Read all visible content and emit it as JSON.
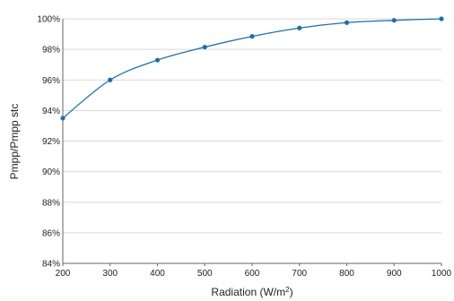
{
  "chart_data": {
    "type": "line",
    "title": "",
    "xlabel": "Radiation (W/m",
    "xlabel_sup": "2",
    "xlabel_close": ")",
    "ylabel": "Pmpp/Pmpp stc",
    "x": [
      200,
      300,
      400,
      500,
      600,
      700,
      800,
      900,
      1000
    ],
    "series": [
      {
        "values": [
          93.5,
          96.0,
          97.3,
          98.15,
          98.85,
          99.4,
          99.75,
          99.9,
          100.0
        ]
      }
    ],
    "xlim": [
      200,
      1000
    ],
    "ylim": [
      84,
      100
    ],
    "xticks": [
      200,
      300,
      400,
      500,
      600,
      700,
      800,
      900,
      1000
    ],
    "yticks": [
      84,
      86,
      88,
      90,
      92,
      94,
      96,
      98,
      100
    ],
    "ytick_suffix": "%",
    "grid": true,
    "color": "#1f6fa8"
  }
}
